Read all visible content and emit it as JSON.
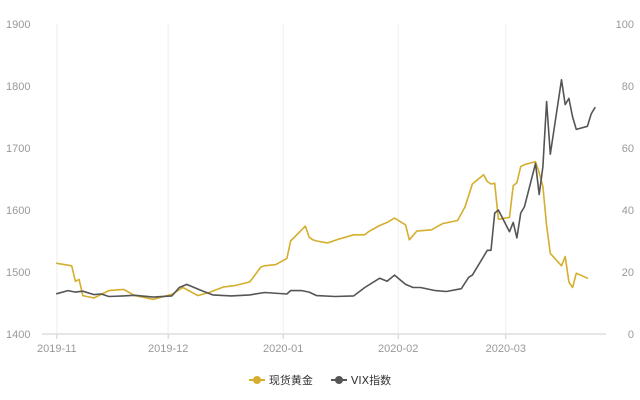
{
  "chart_data": {
    "type": "line",
    "x_labels": [
      "2019-11",
      "2019-12",
      "2020-01",
      "2020-02",
      "2020-03"
    ],
    "y_left": {
      "ticks": [
        "1400",
        "1500",
        "1600",
        "1700",
        "1800",
        "1900"
      ],
      "range": [
        1400,
        1900
      ]
    },
    "y_right": {
      "ticks": [
        "0",
        "20",
        "40",
        "60",
        "80",
        "100"
      ],
      "range": [
        0,
        100
      ]
    },
    "grid": "vertical lines at month ticks",
    "legend_position": "bottom",
    "series": [
      {
        "name": "现货黄金",
        "axis": "left",
        "color": "#D4AE2C",
        "x": [
          "2019-11-01",
          "2019-11-05",
          "2019-11-06",
          "2019-11-07",
          "2019-11-08",
          "2019-11-11",
          "2019-11-15",
          "2019-11-19",
          "2019-11-22",
          "2019-11-27",
          "2019-12-02",
          "2019-12-05",
          "2019-12-09",
          "2019-12-12",
          "2019-12-16",
          "2019-12-19",
          "2019-12-23",
          "2019-12-26",
          "2019-12-27",
          "2019-12-30",
          "2020-01-02",
          "2020-01-03",
          "2020-01-06",
          "2020-01-07",
          "2020-01-08",
          "2020-01-09",
          "2020-01-10",
          "2020-01-13",
          "2020-01-16",
          "2020-01-20",
          "2020-01-23",
          "2020-01-24",
          "2020-01-27",
          "2020-01-29",
          "2020-01-31",
          "2020-02-03",
          "2020-02-04",
          "2020-02-06",
          "2020-02-10",
          "2020-02-13",
          "2020-02-17",
          "2020-02-19",
          "2020-02-21",
          "2020-02-24",
          "2020-02-25",
          "2020-02-26",
          "2020-02-27",
          "2020-02-28",
          "2020-03-02",
          "2020-03-03",
          "2020-03-04",
          "2020-03-05",
          "2020-03-06",
          "2020-03-09",
          "2020-03-10",
          "2020-03-11",
          "2020-03-12",
          "2020-03-13",
          "2020-03-16",
          "2020-03-17",
          "2020-03-18",
          "2020-03-19",
          "2020-03-20",
          "2020-03-23"
        ],
        "values": [
          1514,
          1510,
          1485,
          1488,
          1462,
          1458,
          1470,
          1472,
          1462,
          1456,
          1464,
          1475,
          1462,
          1467,
          1476,
          1478,
          1484,
          1508,
          1510,
          1512,
          1522,
          1550,
          1568,
          1574,
          1556,
          1552,
          1550,
          1547,
          1553,
          1560,
          1560,
          1565,
          1575,
          1580,
          1587,
          1576,
          1552,
          1566,
          1568,
          1578,
          1583,
          1605,
          1642,
          1657,
          1646,
          1642,
          1643,
          1585,
          1588,
          1639,
          1644,
          1670,
          1673,
          1678,
          1660,
          1638,
          1575,
          1530,
          1510,
          1525,
          1484,
          1475,
          1498,
          1490
        ]
      },
      {
        "name": "VIX指数",
        "axis": "right",
        "color": "#555555",
        "x": [
          "2019-11-01",
          "2019-11-04",
          "2019-11-06",
          "2019-11-08",
          "2019-11-11",
          "2019-11-13",
          "2019-11-15",
          "2019-11-19",
          "2019-11-22",
          "2019-11-27",
          "2019-12-02",
          "2019-12-04",
          "2019-12-06",
          "2019-12-10",
          "2019-12-13",
          "2019-12-18",
          "2019-12-23",
          "2019-12-27",
          "2020-01-02",
          "2020-01-03",
          "2020-01-06",
          "2020-01-08",
          "2020-01-10",
          "2020-01-15",
          "2020-01-20",
          "2020-01-23",
          "2020-01-27",
          "2020-01-29",
          "2020-01-31",
          "2020-02-03",
          "2020-02-05",
          "2020-02-07",
          "2020-02-11",
          "2020-02-14",
          "2020-02-18",
          "2020-02-20",
          "2020-02-21",
          "2020-02-24",
          "2020-02-25",
          "2020-02-26",
          "2020-02-27",
          "2020-02-28",
          "2020-03-02",
          "2020-03-03",
          "2020-03-04",
          "2020-03-05",
          "2020-03-06",
          "2020-03-09",
          "2020-03-10",
          "2020-03-11",
          "2020-03-12",
          "2020-03-13",
          "2020-03-16",
          "2020-03-17",
          "2020-03-18",
          "2020-03-19",
          "2020-03-20",
          "2020-03-23",
          "2020-03-24",
          "2020-03-25"
        ],
        "values": [
          13,
          14,
          13.5,
          13.8,
          12.7,
          12.9,
          12.1,
          12.3,
          12.5,
          11.9,
          12.3,
          15,
          16,
          14,
          12.6,
          12.3,
          12.6,
          13.4,
          12.9,
          14,
          14,
          13.5,
          12.4,
          12.1,
          12.3,
          15,
          18,
          17,
          19,
          16,
          15,
          15,
          14,
          13.7,
          14.6,
          18.3,
          19,
          25,
          27,
          27,
          39,
          40,
          33,
          36,
          31,
          39,
          41,
          55,
          45,
          54,
          75,
          58,
          82,
          74,
          76,
          70,
          66,
          67,
          71,
          73
        ]
      }
    ]
  }
}
